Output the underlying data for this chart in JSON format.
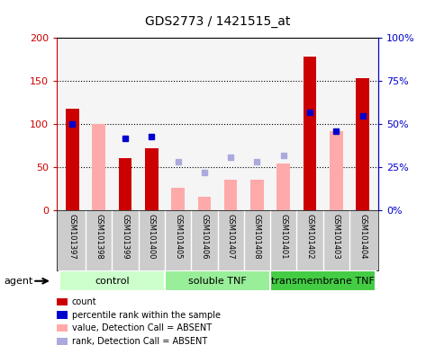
{
  "title": "GDS2773 / 1421515_at",
  "samples": [
    "GSM101397",
    "GSM101398",
    "GSM101399",
    "GSM101400",
    "GSM101405",
    "GSM101406",
    "GSM101407",
    "GSM101408",
    "GSM101401",
    "GSM101402",
    "GSM101403",
    "GSM101404"
  ],
  "count_values": [
    118,
    null,
    61,
    72,
    null,
    null,
    null,
    null,
    null,
    178,
    null,
    153
  ],
  "count_absent_values": [
    null,
    100,
    null,
    null,
    26,
    16,
    36,
    36,
    54,
    null,
    92,
    null
  ],
  "percentile_values": [
    50,
    null,
    42,
    43,
    null,
    null,
    null,
    null,
    null,
    57,
    46,
    55
  ],
  "percentile_absent_values": [
    null,
    null,
    null,
    null,
    28,
    22,
    31,
    28,
    32,
    null,
    null,
    null
  ],
  "left_ylim": [
    0,
    200
  ],
  "right_ylim": [
    0,
    100
  ],
  "left_yticks": [
    0,
    50,
    100,
    150,
    200
  ],
  "right_yticks": [
    0,
    25,
    50,
    75,
    100
  ],
  "right_yticklabels": [
    "0%",
    "25%",
    "50%",
    "75%",
    "100%"
  ],
  "groups": [
    {
      "label": "control",
      "start": 0,
      "end": 4,
      "color": "#ccffcc"
    },
    {
      "label": "soluble TNF",
      "start": 4,
      "end": 8,
      "color": "#99ee99"
    },
    {
      "label": "transmembrane TNF",
      "start": 8,
      "end": 12,
      "color": "#44cc44"
    }
  ],
  "bar_width": 0.5,
  "count_color": "#cc0000",
  "count_absent_color": "#ffaaaa",
  "percentile_color": "#0000cc",
  "percentile_absent_color": "#aaaadd",
  "grid_color": "black",
  "bg_color": "#cccccc",
  "plot_bg": "#f5f5f5",
  "agent_label": "agent",
  "legend_labels": [
    "count",
    "percentile rank within the sample",
    "value, Detection Call = ABSENT",
    "rank, Detection Call = ABSENT"
  ],
  "legend_colors": [
    "#cc0000",
    "#0000cc",
    "#ffaaaa",
    "#aaaadd"
  ],
  "dotted_lines": [
    50,
    100,
    150
  ]
}
